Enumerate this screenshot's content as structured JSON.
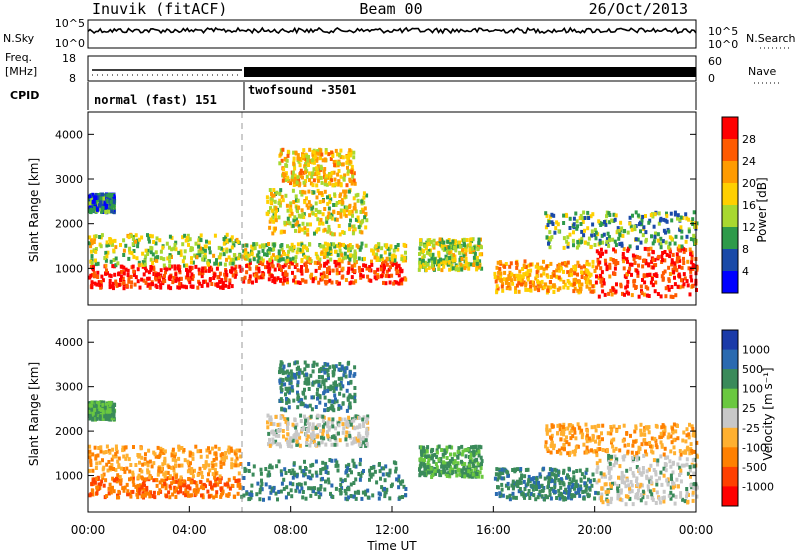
{
  "header": {
    "station": "Inuvik (fitACF)",
    "beam": "Beam 00",
    "date": "26/Oct/2013"
  },
  "housekeeping": {
    "nsky_label": "N.Sky",
    "nsearch_label": "N.Search",
    "noise_ticks_left": [
      "10^5",
      "10^0"
    ],
    "noise_ticks_right": [
      "10^5",
      "10^0"
    ],
    "freq_label": "Freq.",
    "freq_unit": "[MHz]",
    "freq_ticks": [
      "18",
      "8"
    ],
    "nave_label": "Nave",
    "nave_ticks": [
      "60",
      "0"
    ],
    "cpid_label": "CPID",
    "cpid_segments": [
      {
        "label": "normal (fast) 151",
        "start_h": 0,
        "end_h": 6
      },
      {
        "label": "twofsound -3501",
        "start_h": 6,
        "end_h": 24
      }
    ]
  },
  "panels": {
    "power": {
      "ylabel": "Slant Range [km]",
      "yticks": [
        "4000",
        "3000",
        "2000",
        "1000"
      ],
      "cbar_label": "Power [dB]",
      "cbar_ticks": [
        "28",
        "24",
        "20",
        "16",
        "12",
        "8",
        "4"
      ],
      "cbar_colors": [
        "#ff0000",
        "#ff5a00",
        "#ff9b00",
        "#ffd000",
        "#a8d830",
        "#2e9a4a",
        "#1a4aa8",
        "#0000ff"
      ]
    },
    "velocity": {
      "ylabel": "Slant Range [km]",
      "yticks": [
        "4000",
        "3000",
        "2000",
        "1000"
      ],
      "cbar_label": "Velocity [m s⁻¹]",
      "cbar_ticks": [
        "1000",
        "500",
        "100",
        "25",
        "-25",
        "-100",
        "-500",
        "-1000"
      ],
      "cbar_colors": [
        "#1a3aa8",
        "#2a6ab0",
        "#3a8a5a",
        "#6ac840",
        "#c8c8c8",
        "#ffb030",
        "#ff8000",
        "#ff4000",
        "#ff0000"
      ]
    }
  },
  "xaxis": {
    "label": "Time UT",
    "ticks": [
      "00:00",
      "04:00",
      "08:00",
      "12:00",
      "16:00",
      "20:00",
      "00:00"
    ]
  },
  "chart_data": {
    "type": "heatmap",
    "x_range_hours": [
      0,
      24
    ],
    "y_range_km": [
      180,
      4500
    ],
    "power_regions": [
      {
        "t0": 0.0,
        "t1": 6.0,
        "r0": 600,
        "r1": 1100,
        "db": 28
      },
      {
        "t0": 0.0,
        "t1": 6.0,
        "r0": 1100,
        "r1": 1800,
        "db": 14
      },
      {
        "t0": 0.0,
        "t1": 1.0,
        "r0": 2300,
        "r1": 2700,
        "db": 8
      },
      {
        "t0": 6.0,
        "t1": 12.5,
        "r0": 700,
        "r1": 1200,
        "db": 26
      },
      {
        "t0": 6.0,
        "t1": 12.5,
        "r0": 1200,
        "r1": 1600,
        "db": 14
      },
      {
        "t0": 7.0,
        "t1": 11.0,
        "r0": 1800,
        "r1": 2800,
        "db": 16
      },
      {
        "t0": 7.5,
        "t1": 10.5,
        "r0": 2900,
        "r1": 3700,
        "db": 18
      },
      {
        "t0": 13.0,
        "t1": 15.5,
        "r0": 1000,
        "r1": 1700,
        "db": 14
      },
      {
        "t0": 16.0,
        "t1": 20.0,
        "r0": 500,
        "r1": 1200,
        "db": 20
      },
      {
        "t0": 20.0,
        "t1": 24.0,
        "r0": 400,
        "r1": 1500,
        "db": 26
      },
      {
        "t0": 18.0,
        "t1": 24.0,
        "r0": 1500,
        "r1": 2300,
        "db": 12
      }
    ],
    "velocity_regions": [
      {
        "t0": 0.0,
        "t1": 6.0,
        "r0": 550,
        "r1": 1000,
        "v": -500
      },
      {
        "t0": 0.0,
        "t1": 6.0,
        "r0": 1000,
        "r1": 1700,
        "v": -100
      },
      {
        "t0": 0.0,
        "t1": 1.0,
        "r0": 2300,
        "r1": 2700,
        "v": 100
      },
      {
        "t0": 6.0,
        "t1": 12.5,
        "r0": 500,
        "r1": 1400,
        "v": 500
      },
      {
        "t0": 7.0,
        "t1": 11.0,
        "r0": 1700,
        "r1": 2400,
        "v": 0
      },
      {
        "t0": 7.5,
        "t1": 10.5,
        "r0": 2500,
        "r1": 3600,
        "v": 500
      },
      {
        "t0": 13.0,
        "t1": 15.5,
        "r0": 1000,
        "r1": 1700,
        "v": 100
      },
      {
        "t0": 16.0,
        "t1": 20.0,
        "r0": 500,
        "r1": 1200,
        "v": 500
      },
      {
        "t0": 20.0,
        "t1": 24.0,
        "r0": 400,
        "r1": 1500,
        "v": 0
      },
      {
        "t0": 18.0,
        "t1": 24.0,
        "r0": 1500,
        "r1": 2200,
        "v": -100
      }
    ]
  }
}
